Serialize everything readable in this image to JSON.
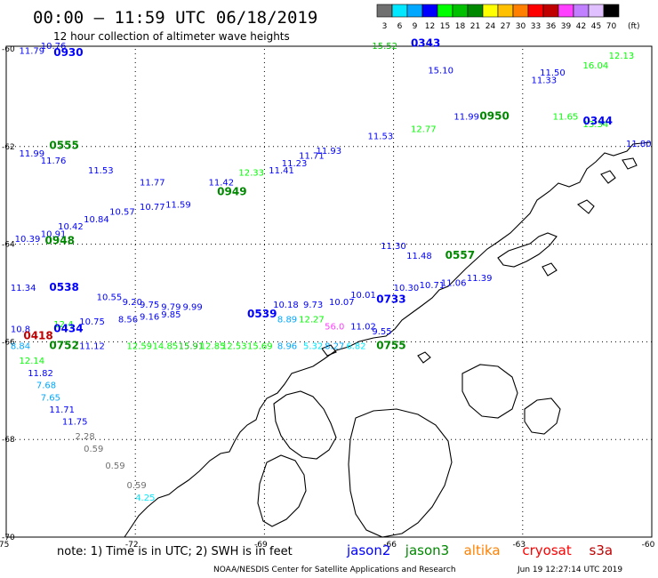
{
  "header": {
    "title": "00:00 – 11:59 UTC 06/18/2019",
    "subtitle": "12 hour collection of altimeter wave heights"
  },
  "color_scale": {
    "labels": [
      "3",
      "6",
      "9",
      "12",
      "15",
      "18",
      "21",
      "24",
      "27",
      "30",
      "33",
      "36",
      "39",
      "42",
      "45",
      "70"
    ],
    "unit": "(ft)",
    "colors": [
      "#707070",
      "#00e8ff",
      "#00a8ff",
      "#0000ff",
      "#00ff00",
      "#00c000",
      "#008800",
      "#ffff00",
      "#ffc000",
      "#ff8000",
      "#ff0000",
      "#c00000",
      "#ff40ff",
      "#c080ff",
      "#e0c0ff",
      "#000000"
    ]
  },
  "axes": {
    "lon_ticks": [
      "-75",
      "-72",
      "-69",
      "-66",
      "-63",
      "-60"
    ],
    "lat_ticks": [
      "-60",
      "-62",
      "-64",
      "-66",
      "-68",
      "-70"
    ]
  },
  "tracks": [
    {
      "time": "0930",
      "sat": "jason2"
    },
    {
      "time": "0343",
      "sat": "jason2"
    },
    {
      "time": "0555",
      "sat": "jason3"
    },
    {
      "time": "0950",
      "sat": "jason3"
    },
    {
      "time": "0344",
      "sat": "jason2"
    },
    {
      "time": "0949",
      "sat": "jason3"
    },
    {
      "time": "0948",
      "sat": "jason3"
    },
    {
      "time": "0557",
      "sat": "jason3"
    },
    {
      "time": "0538",
      "sat": "jason2"
    },
    {
      "time": "0539",
      "sat": "jason2"
    },
    {
      "time": "0733",
      "sat": "jason2"
    },
    {
      "time": "0434",
      "sat": "jason2"
    },
    {
      "time": "0418",
      "sat": "cryosat"
    },
    {
      "time": "0752",
      "sat": "jason3"
    },
    {
      "time": "0755",
      "sat": "jason3"
    }
  ],
  "labels": [
    {
      "t": "11.79",
      "c": "#0000ff",
      "lon": -74.7,
      "lat": -60.1
    },
    {
      "t": "10.76",
      "c": "#0000ff",
      "lon": -74.2,
      "lat": -60.0
    },
    {
      "t": "15.52",
      "c": "#00c000",
      "lon": -66.5,
      "lat": -60.0
    },
    {
      "t": "15.10",
      "c": "#0000ff",
      "lon": -65.2,
      "lat": -60.5
    },
    {
      "t": "11.50",
      "c": "#0000ff",
      "lon": -62.6,
      "lat": -60.55
    },
    {
      "t": "11.33",
      "c": "#0000ff",
      "lon": -62.8,
      "lat": -60.7
    },
    {
      "t": "12.13",
      "c": "#00ff00",
      "lon": -61.0,
      "lat": -60.2
    },
    {
      "t": "16.04",
      "c": "#00ff00",
      "lon": -61.6,
      "lat": -60.4
    },
    {
      "t": "11.99",
      "c": "#0000ff",
      "lon": -64.6,
      "lat": -61.45
    },
    {
      "t": "12.77",
      "c": "#00ff00",
      "lon": -65.6,
      "lat": -61.7
    },
    {
      "t": "11.53",
      "c": "#0000ff",
      "lon": -66.6,
      "lat": -61.85
    },
    {
      "t": "11.65",
      "c": "#00ff00",
      "lon": -62.3,
      "lat": -61.45
    },
    {
      "t": "13.34",
      "c": "#00ff00",
      "lon": -61.6,
      "lat": -61.6
    },
    {
      "t": "11.80",
      "c": "#0000ff",
      "lon": -60.6,
      "lat": -62.0
    },
    {
      "t": "11.93",
      "c": "#0000ff",
      "lon": -67.8,
      "lat": -62.15
    },
    {
      "t": "11.71",
      "c": "#0000ff",
      "lon": -68.2,
      "lat": -62.25
    },
    {
      "t": "11.23",
      "c": "#0000ff",
      "lon": -68.6,
      "lat": -62.4
    },
    {
      "t": "11.41",
      "c": "#0000ff",
      "lon": -68.9,
      "lat": -62.55
    },
    {
      "t": "11.99",
      "c": "#0000ff",
      "lon": -74.7,
      "lat": -62.2
    },
    {
      "t": "11.76",
      "c": "#0000ff",
      "lon": -74.2,
      "lat": -62.35
    },
    {
      "t": "11.53",
      "c": "#0000ff",
      "lon": -73.1,
      "lat": -62.55
    },
    {
      "t": "11.77",
      "c": "#0000ff",
      "lon": -71.9,
      "lat": -62.8
    },
    {
      "t": "11.42",
      "c": "#0000ff",
      "lon": -70.3,
      "lat": -62.8
    },
    {
      "t": "12.33",
      "c": "#00ff00",
      "lon": -69.6,
      "lat": -62.6
    },
    {
      "t": "10.77",
      "c": "#0000ff",
      "lon": -71.9,
      "lat": -63.3
    },
    {
      "t": "11.59",
      "c": "#0000ff",
      "lon": -71.3,
      "lat": -63.25
    },
    {
      "t": "10.57",
      "c": "#0000ff",
      "lon": -72.6,
      "lat": -63.4
    },
    {
      "t": "10.84",
      "c": "#0000ff",
      "lon": -73.2,
      "lat": -63.55
    },
    {
      "t": "10.42",
      "c": "#0000ff",
      "lon": -73.8,
      "lat": -63.7
    },
    {
      "t": "10.91",
      "c": "#0000ff",
      "lon": -74.2,
      "lat": -63.85
    },
    {
      "t": "10.39",
      "c": "#0000ff",
      "lon": -74.8,
      "lat": -63.95
    },
    {
      "t": "11.30",
      "c": "#0000ff",
      "lon": -66.3,
      "lat": -64.1
    },
    {
      "t": "11.48",
      "c": "#0000ff",
      "lon": -65.7,
      "lat": -64.3
    },
    {
      "t": "11.34",
      "c": "#0000ff",
      "lon": -74.9,
      "lat": -64.95
    },
    {
      "t": "10.55",
      "c": "#0000ff",
      "lon": -72.9,
      "lat": -65.15
    },
    {
      "t": "9.20",
      "c": "#0000ff",
      "lon": -72.3,
      "lat": -65.25
    },
    {
      "t": "9.75",
      "c": "#0000ff",
      "lon": -71.9,
      "lat": -65.3
    },
    {
      "t": "9.79",
      "c": "#0000ff",
      "lon": -71.4,
      "lat": -65.35
    },
    {
      "t": "9.99",
      "c": "#0000ff",
      "lon": -70.9,
      "lat": -65.35
    },
    {
      "t": "10.18",
      "c": "#0000ff",
      "lon": -68.8,
      "lat": -65.3
    },
    {
      "t": "9.73",
      "c": "#0000ff",
      "lon": -68.1,
      "lat": -65.3
    },
    {
      "t": "10.07",
      "c": "#0000ff",
      "lon": -67.5,
      "lat": -65.25
    },
    {
      "t": "10.01",
      "c": "#0000ff",
      "lon": -67.0,
      "lat": -65.1
    },
    {
      "t": "10.30",
      "c": "#0000ff",
      "lon": -66.0,
      "lat": -64.95
    },
    {
      "t": "10.71",
      "c": "#0000ff",
      "lon": -65.4,
      "lat": -64.9
    },
    {
      "t": "11.06",
      "c": "#0000ff",
      "lon": -64.9,
      "lat": -64.85
    },
    {
      "t": "11.39",
      "c": "#0000ff",
      "lon": -64.3,
      "lat": -64.75
    },
    {
      "t": "10.75",
      "c": "#0000ff",
      "lon": -73.3,
      "lat": -65.65
    },
    {
      "t": "8.56",
      "c": "#0000ff",
      "lon": -72.4,
      "lat": -65.6
    },
    {
      "t": "9.16",
      "c": "#0000ff",
      "lon": -71.9,
      "lat": -65.55
    },
    {
      "t": "9.85",
      "c": "#0000ff",
      "lon": -71.4,
      "lat": -65.5
    },
    {
      "t": "12.4",
      "c": "#00ff00",
      "lon": -73.9,
      "lat": -65.7
    },
    {
      "t": "8.89",
      "c": "#00a8ff",
      "lon": -68.7,
      "lat": -65.6
    },
    {
      "t": "12.27",
      "c": "#00ff00",
      "lon": -68.2,
      "lat": -65.6
    },
    {
      "t": "56.0",
      "c": "#ff40ff",
      "lon": -67.6,
      "lat": -65.75
    },
    {
      "t": "11.02",
      "c": "#0000ff",
      "lon": -67.0,
      "lat": -65.75
    },
    {
      "t": "9.55",
      "c": "#0000ff",
      "lon": -66.5,
      "lat": -65.85
    },
    {
      "t": "10.8",
      "c": "#0000ff",
      "lon": -74.9,
      "lat": -65.8
    },
    {
      "t": "8.84",
      "c": "#00a8ff",
      "lon": -74.9,
      "lat": -66.15
    },
    {
      "t": "11.12",
      "c": "#0000ff",
      "lon": -73.3,
      "lat": -66.15
    },
    {
      "t": "12.59",
      "c": "#00ff00",
      "lon": -72.2,
      "lat": -66.15
    },
    {
      "t": "14.85",
      "c": "#00ff00",
      "lon": -71.6,
      "lat": -66.15
    },
    {
      "t": "15.91",
      "c": "#00c000",
      "lon": -71.0,
      "lat": -66.15
    },
    {
      "t": "12.85",
      "c": "#00ff00",
      "lon": -70.5,
      "lat": -66.15
    },
    {
      "t": "12.53",
      "c": "#00ff00",
      "lon": -70.0,
      "lat": -66.15
    },
    {
      "t": "15.69",
      "c": "#00ff00",
      "lon": -69.4,
      "lat": -66.15
    },
    {
      "t": "8.96",
      "c": "#00a8ff",
      "lon": -68.7,
      "lat": -66.15
    },
    {
      "t": "5.32",
      "c": "#00e8ff",
      "lon": -68.1,
      "lat": -66.15
    },
    {
      "t": "8.27",
      "c": "#00a8ff",
      "lon": -67.6,
      "lat": -66.15
    },
    {
      "t": "6.82",
      "c": "#00e8ff",
      "lon": -67.1,
      "lat": -66.15
    },
    {
      "t": "12.14",
      "c": "#00ff00",
      "lon": -74.7,
      "lat": -66.45
    },
    {
      "t": "11.82",
      "c": "#0000ff",
      "lon": -74.5,
      "lat": -66.7
    },
    {
      "t": "7.68",
      "c": "#00a8ff",
      "lon": -74.3,
      "lat": -66.95
    },
    {
      "t": "7.65",
      "c": "#00a8ff",
      "lon": -74.2,
      "lat": -67.2
    },
    {
      "t": "11.71",
      "c": "#0000ff",
      "lon": -74.0,
      "lat": -67.45
    },
    {
      "t": "11.75",
      "c": "#0000ff",
      "lon": -73.7,
      "lat": -67.7
    },
    {
      "t": "2.28",
      "c": "#707070",
      "lon": -73.4,
      "lat": -68.0
    },
    {
      "t": "0.59",
      "c": "#707070",
      "lon": -73.2,
      "lat": -68.25
    },
    {
      "t": "0.59",
      "c": "#707070",
      "lon": -72.7,
      "lat": -68.6
    },
    {
      "t": "0.59",
      "c": "#707070",
      "lon": -72.2,
      "lat": -69.0
    },
    {
      "t": "4.25",
      "c": "#00e8ff",
      "lon": -72.0,
      "lat": -69.25
    }
  ],
  "stamps": [
    {
      "t": "0930",
      "c": "#0000ff",
      "lon": -73.9,
      "lat": -60.15
    },
    {
      "t": "0343",
      "c": "#0000ff",
      "lon": -65.6,
      "lat": -59.95
    },
    {
      "t": "0555",
      "c": "#008800",
      "lon": -74.0,
      "lat": -62.05
    },
    {
      "t": "0950",
      "c": "#008800",
      "lon": -64.0,
      "lat": -61.45
    },
    {
      "t": "0344",
      "c": "#0000ff",
      "lon": -61.6,
      "lat": -61.55
    },
    {
      "t": "0949",
      "c": "#008800",
      "lon": -70.1,
      "lat": -63.0
    },
    {
      "t": "0948",
      "c": "#008800",
      "lon": -74.1,
      "lat": -64.0
    },
    {
      "t": "0557",
      "c": "#008800",
      "lon": -64.8,
      "lat": -64.3
    },
    {
      "t": "0538",
      "c": "#0000ff",
      "lon": -74.0,
      "lat": -64.95
    },
    {
      "t": "0539",
      "c": "#0000ff",
      "lon": -69.4,
      "lat": -65.5
    },
    {
      "t": "0733",
      "c": "#0000ff",
      "lon": -66.4,
      "lat": -65.2
    },
    {
      "t": "0434",
      "c": "#0000ff",
      "lon": -73.9,
      "lat": -65.8
    },
    {
      "t": "0418",
      "c": "#c00000",
      "lon": -74.6,
      "lat": -65.95
    },
    {
      "t": "0752",
      "c": "#008800",
      "lon": -74.0,
      "lat": -66.15
    },
    {
      "t": "0755",
      "c": "#008800",
      "lon": -66.4,
      "lat": -66.15
    }
  ],
  "footer": {
    "note": "note: 1) Time is in UTC; 2) SWH is in feet",
    "satellites": [
      {
        "name": "jason2",
        "color": "#0000ff"
      },
      {
        "name": "jason3",
        "color": "#008800"
      },
      {
        "name": "altika",
        "color": "#ff8000"
      },
      {
        "name": "cryosat",
        "color": "#ff0000"
      },
      {
        "name": "s3a",
        "color": "#c00000"
      }
    ],
    "credit": "NOAA/NESDIS Center for Satellite Applications and Research",
    "generated": "Jun 19 12:27:14 UTC 2019"
  }
}
